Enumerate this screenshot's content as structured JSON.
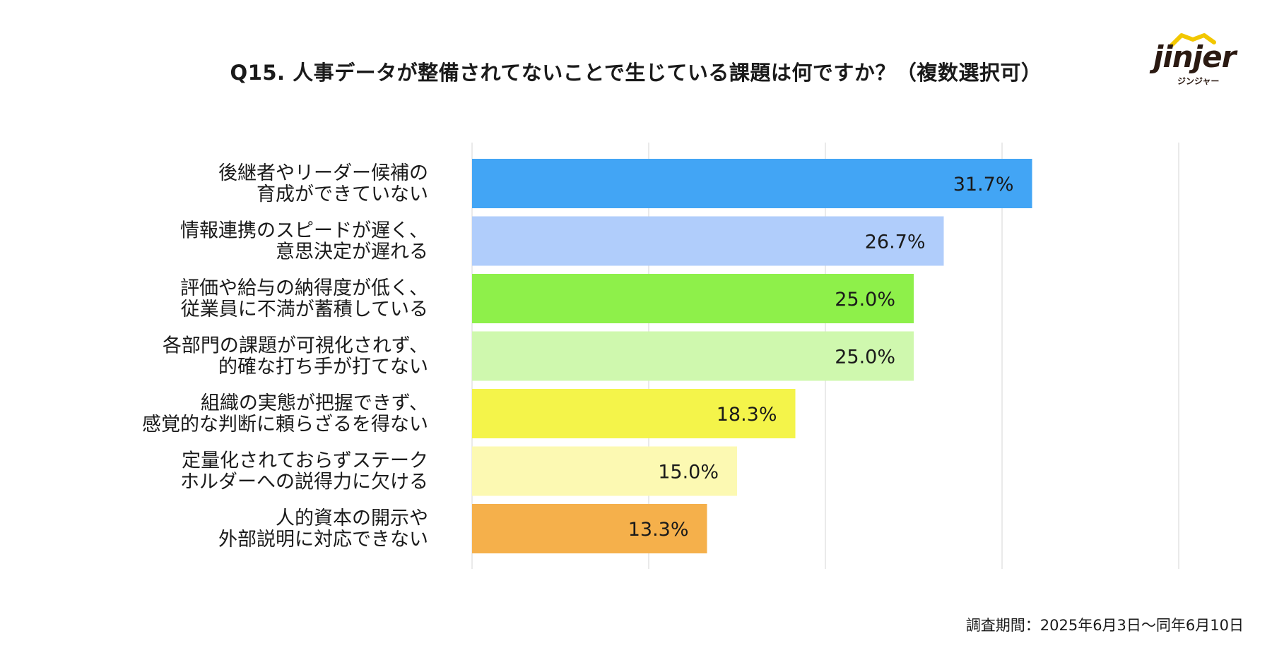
{
  "title": "Q15. 人事データが整備されてないことで生じている課題は何ですか？（複数選択可）",
  "logo": {
    "word": "jinjer",
    "kana": "ジンジャー"
  },
  "footnote": "調査期間：2025年6月3日〜同年6月10日",
  "chart_data": {
    "type": "bar",
    "orientation": "horizontal",
    "categories": [
      [
        "後継者やリーダー候補の",
        "育成ができていない"
      ],
      [
        "情報連携のスピードが遅く、",
        "意思決定が遅れる"
      ],
      [
        "評価や給与の納得度が低く、",
        "従業員に不満が蓄積している"
      ],
      [
        "各部門の課題が可視化されず、",
        "的確な打ち手が打てない"
      ],
      [
        "組織の実態が把握できず、",
        "感覚的な判断に頼らざるを得ない"
      ],
      [
        "定量化されておらずステーク",
        "ホルダーへの説得力に欠ける"
      ],
      [
        "人的資本の開示や",
        "外部説明に対応できない"
      ]
    ],
    "values": [
      31.7,
      26.7,
      25.0,
      25.0,
      18.3,
      15.0,
      13.3
    ],
    "value_labels": [
      "31.7%",
      "26.7%",
      "25.0%",
      "25.0%",
      "18.3%",
      "15.0%",
      "13.3%"
    ],
    "colors": [
      "#42a5f5",
      "#b0cdfb",
      "#8ef04a",
      "#cff8ae",
      "#f4f44a",
      "#fcf9b2",
      "#f5b04b"
    ],
    "xlim": [
      0,
      40
    ],
    "grid": true,
    "legend": "none"
  }
}
